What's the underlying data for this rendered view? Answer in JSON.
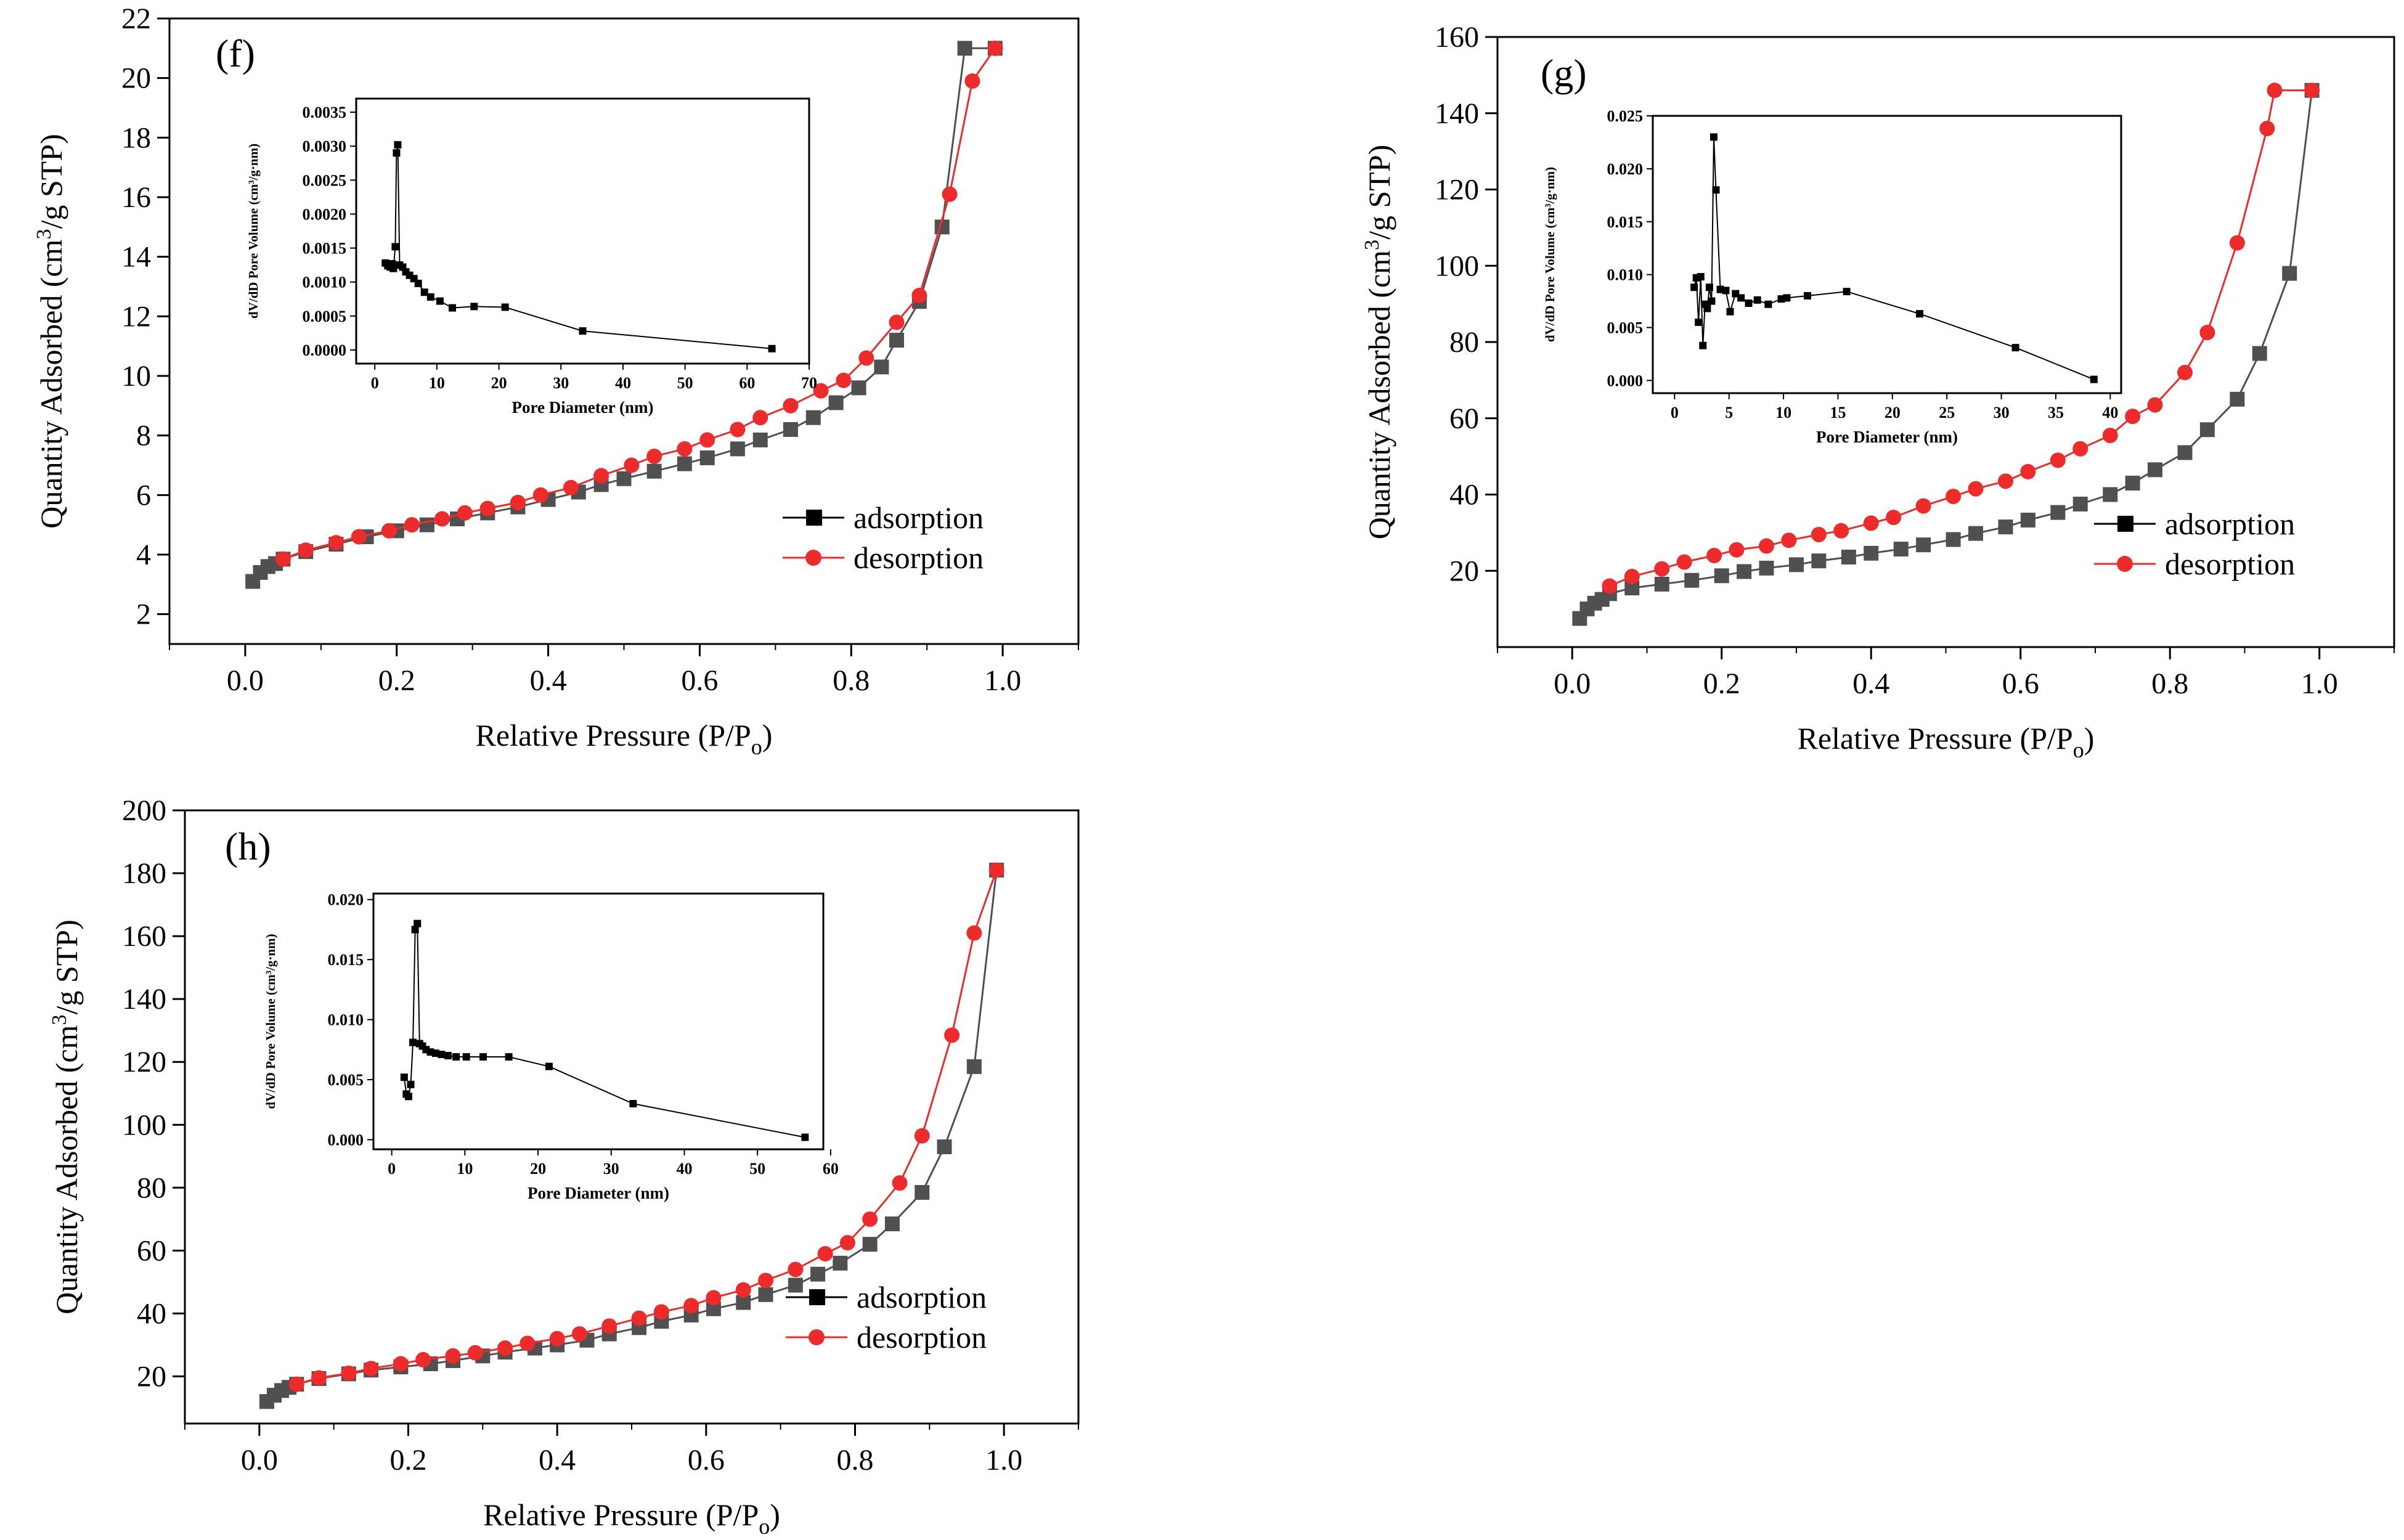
{
  "figure": {
    "background": "#ffffff"
  },
  "colors": {
    "adsorption": "#505050",
    "desorption": "#ee2b2b",
    "inset": "#000000",
    "axis": "#000000"
  },
  "chart_data": [
    {
      "type": "line",
      "panel_label": "(f)",
      "xlabel": "Relative Pressure (P/P",
      "xlabel_subscript": "o",
      "xlabel_suffix": ")",
      "ylabel": "Quantity Adsorbed (cm",
      "ylabel_superscript": "3",
      "ylabel_suffix": "/g STP)",
      "xlim": [
        -0.1,
        1.1
      ],
      "ylim": [
        1.0,
        22.0
      ],
      "xticks": [
        "0.0",
        "0.2",
        "0.4",
        "0.6",
        "0.8",
        "1.0"
      ],
      "yticks": [
        "2",
        "4",
        "6",
        "8",
        "10",
        "12",
        "14",
        "16",
        "18",
        "20",
        "22"
      ],
      "legend": [
        "adsorption",
        "desorption"
      ],
      "legend_position": "lower-right",
      "series": [
        {
          "name": "adsorption",
          "marker": "square",
          "x": [
            0.01,
            0.02,
            0.03,
            0.04,
            0.05,
            0.08,
            0.12,
            0.16,
            0.2,
            0.24,
            0.28,
            0.32,
            0.36,
            0.4,
            0.44,
            0.47,
            0.5,
            0.54,
            0.58,
            0.61,
            0.65,
            0.68,
            0.72,
            0.75,
            0.78,
            0.81,
            0.84,
            0.86,
            0.89,
            0.92,
            0.95,
            0.99
          ],
          "y": [
            3.1,
            3.4,
            3.6,
            3.7,
            3.85,
            4.1,
            4.35,
            4.6,
            4.8,
            5.0,
            5.2,
            5.4,
            5.6,
            5.85,
            6.1,
            6.35,
            6.55,
            6.8,
            7.05,
            7.25,
            7.55,
            7.85,
            8.2,
            8.6,
            9.1,
            9.6,
            10.3,
            11.2,
            12.5,
            15.0,
            21.0,
            21.0
          ]
        },
        {
          "name": "desorption",
          "marker": "circle",
          "x": [
            0.99,
            0.96,
            0.93,
            0.89,
            0.86,
            0.82,
            0.79,
            0.76,
            0.72,
            0.68,
            0.65,
            0.61,
            0.58,
            0.54,
            0.51,
            0.47,
            0.43,
            0.39,
            0.36,
            0.32,
            0.29,
            0.26,
            0.22,
            0.19,
            0.15,
            0.12,
            0.08,
            0.05
          ],
          "y": [
            21.0,
            19.9,
            16.1,
            12.7,
            11.8,
            10.6,
            9.85,
            9.5,
            9.0,
            8.6,
            8.2,
            7.85,
            7.55,
            7.3,
            7.0,
            6.65,
            6.25,
            6.0,
            5.75,
            5.55,
            5.4,
            5.2,
            5.0,
            4.8,
            4.6,
            4.4,
            4.15,
            3.85
          ]
        }
      ],
      "inset": {
        "type": "line",
        "xlabel": "Pore Diameter (nm)",
        "ylabel": "dV/dD Pore Volume (cm³/g·nm)",
        "xlim": [
          -3,
          70
        ],
        "ylim": [
          -0.0002,
          0.0037
        ],
        "xticks": [
          "0",
          "10",
          "20",
          "30",
          "40",
          "50",
          "60",
          "70"
        ],
        "yticks": [
          "0.0000",
          "0.0005",
          "0.0010",
          "0.0015",
          "0.0020",
          "0.0025",
          "0.0030",
          "0.0035"
        ],
        "x": [
          1.7,
          2.1,
          2.5,
          2.8,
          3.0,
          3.3,
          3.5,
          3.7,
          4.0,
          4.5,
          5.0,
          5.6,
          6.3,
          7.0,
          8.0,
          9.0,
          10.5,
          12.5,
          16.0,
          21.0,
          33.5,
          64.0
        ],
        "y": [
          0.00128,
          0.00124,
          0.00122,
          0.00127,
          0.0012,
          0.00152,
          0.0029,
          0.00302,
          0.00125,
          0.00122,
          0.00115,
          0.0011,
          0.00105,
          0.00098,
          0.00085,
          0.00078,
          0.00072,
          0.00062,
          0.00064,
          0.00063,
          0.00028,
          2e-05
        ]
      }
    },
    {
      "type": "line",
      "panel_label": "(g)",
      "xlabel": "Relative Pressure (P/P",
      "xlabel_subscript": "o",
      "xlabel_suffix": ")",
      "ylabel": "Quantity Adsorbed (cm",
      "ylabel_superscript": "3",
      "ylabel_suffix": "/g STP)",
      "xlim": [
        -0.1,
        1.1
      ],
      "ylim": [
        0,
        160
      ],
      "xticks": [
        "0.0",
        "0.2",
        "0.4",
        "0.6",
        "0.8",
        "1.0"
      ],
      "yticks": [
        "20",
        "40",
        "60",
        "80",
        "100",
        "120",
        "140",
        "160"
      ],
      "legend": [
        "adsorption",
        "desorption"
      ],
      "legend_position": "lower-right",
      "series": [
        {
          "name": "adsorption",
          "marker": "square",
          "x": [
            0.01,
            0.02,
            0.03,
            0.04,
            0.05,
            0.08,
            0.12,
            0.16,
            0.2,
            0.23,
            0.26,
            0.3,
            0.33,
            0.37,
            0.4,
            0.44,
            0.47,
            0.51,
            0.54,
            0.58,
            0.61,
            0.65,
            0.68,
            0.72,
            0.75,
            0.78,
            0.82,
            0.85,
            0.89,
            0.92,
            0.96,
            0.99
          ],
          "y": [
            7.5,
            10.0,
            11.5,
            12.5,
            14.0,
            15.5,
            16.5,
            17.5,
            18.7,
            19.8,
            20.7,
            21.6,
            22.6,
            23.6,
            24.6,
            25.7,
            26.8,
            28.2,
            29.8,
            31.5,
            33.3,
            35.3,
            37.5,
            40.0,
            43.0,
            46.5,
            51.0,
            57.0,
            65.0,
            77.0,
            98.0,
            146.0
          ]
        },
        {
          "name": "desorption",
          "marker": "circle",
          "x": [
            0.99,
            0.94,
            0.93,
            0.89,
            0.85,
            0.82,
            0.78,
            0.75,
            0.72,
            0.68,
            0.65,
            0.61,
            0.58,
            0.54,
            0.51,
            0.47,
            0.43,
            0.4,
            0.36,
            0.33,
            0.29,
            0.26,
            0.22,
            0.19,
            0.15,
            0.12,
            0.08,
            0.05
          ],
          "y": [
            146.0,
            146.0,
            136.0,
            106.0,
            82.5,
            72.0,
            63.5,
            60.5,
            55.5,
            52.0,
            49.0,
            46.0,
            43.5,
            41.5,
            39.5,
            37.0,
            34.0,
            32.5,
            30.5,
            29.5,
            28.0,
            26.5,
            25.5,
            24.0,
            22.3,
            20.5,
            18.5,
            16.0
          ]
        }
      ],
      "inset": {
        "type": "line",
        "xlabel": "Pore Diameter (nm)",
        "ylabel": "dV/dD Pore Volume (cm³/g·nm)",
        "xlim": [
          -2,
          41
        ],
        "ylim": [
          -0.0012,
          0.025
        ],
        "xticks": [
          "0",
          "5",
          "10",
          "15",
          "20",
          "25",
          "30",
          "35",
          "40"
        ],
        "yticks": [
          "0.000",
          "0.005",
          "0.010",
          "0.015",
          "0.020",
          "0.025"
        ],
        "x": [
          1.8,
          2.0,
          2.2,
          2.4,
          2.6,
          2.8,
          3.0,
          3.2,
          3.4,
          3.6,
          3.8,
          4.2,
          4.7,
          5.1,
          5.6,
          6.1,
          6.8,
          7.6,
          8.6,
          9.8,
          10.3,
          12.2,
          15.8,
          22.5,
          31.3,
          38.5
        ],
        "y": [
          0.0088,
          0.0097,
          0.0055,
          0.0098,
          0.0033,
          0.0072,
          0.0068,
          0.0088,
          0.0075,
          0.023,
          0.018,
          0.0086,
          0.0085,
          0.0065,
          0.0082,
          0.0078,
          0.0073,
          0.0076,
          0.0072,
          0.0077,
          0.0078,
          0.008,
          0.0084,
          0.0063,
          0.0031,
          0.0001
        ]
      }
    },
    {
      "type": "line",
      "panel_label": "(h)",
      "xlabel": "Relative Pressure (P/P",
      "xlabel_subscript": "o",
      "xlabel_suffix": ")",
      "ylabel": "Quantity Adsorbed (cm",
      "ylabel_superscript": "3",
      "ylabel_suffix": "/g STP)",
      "xlim": [
        -0.1,
        1.1
      ],
      "ylim": [
        5,
        200
      ],
      "xticks": [
        "0.0",
        "0.2",
        "0.4",
        "0.6",
        "0.8",
        "1.0"
      ],
      "yticks": [
        "20",
        "40",
        "60",
        "80",
        "100",
        "120",
        "140",
        "160",
        "180",
        "200"
      ],
      "legend": [
        "adsorption",
        "desorption"
      ],
      "legend_position": "lower-right",
      "series": [
        {
          "name": "adsorption",
          "marker": "square",
          "x": [
            0.01,
            0.02,
            0.03,
            0.04,
            0.05,
            0.08,
            0.12,
            0.15,
            0.19,
            0.23,
            0.26,
            0.3,
            0.33,
            0.37,
            0.4,
            0.44,
            0.47,
            0.51,
            0.54,
            0.58,
            0.61,
            0.65,
            0.68,
            0.72,
            0.75,
            0.78,
            0.82,
            0.85,
            0.89,
            0.92,
            0.96,
            0.99
          ],
          "y": [
            12.0,
            14.0,
            15.5,
            16.5,
            17.5,
            19.3,
            20.8,
            22.0,
            23.0,
            24.0,
            25.0,
            26.5,
            27.7,
            29.0,
            30.0,
            31.5,
            33.5,
            35.5,
            37.5,
            39.5,
            41.5,
            43.5,
            46.0,
            49.0,
            52.5,
            56.0,
            62.0,
            68.5,
            78.5,
            93.0,
            118.5,
            181.0
          ]
        },
        {
          "name": "desorption",
          "marker": "circle",
          "x": [
            0.99,
            0.96,
            0.93,
            0.89,
            0.86,
            0.82,
            0.79,
            0.76,
            0.72,
            0.68,
            0.65,
            0.61,
            0.58,
            0.54,
            0.51,
            0.47,
            0.43,
            0.4,
            0.36,
            0.33,
            0.29,
            0.26,
            0.22,
            0.19,
            0.15,
            0.12,
            0.08,
            0.05
          ],
          "y": [
            181.0,
            161.0,
            128.5,
            96.5,
            81.5,
            70.0,
            62.5,
            59.0,
            54.0,
            50.5,
            47.5,
            45.0,
            42.5,
            40.5,
            38.5,
            36.0,
            33.5,
            32.0,
            30.5,
            29.0,
            27.5,
            26.5,
            25.3,
            24.0,
            22.5,
            21.0,
            19.5,
            17.5
          ]
        }
      ],
      "inset": {
        "type": "line",
        "xlabel": "Pore Diameter (nm)",
        "ylabel": "dV/dD Pore Volume (cm³/g·nm)",
        "xlim": [
          -2.5,
          59
        ],
        "ylim": [
          -0.0008,
          0.0205
        ],
        "xticks": [
          "0",
          "10",
          "20",
          "30",
          "40",
          "50",
          "60"
        ],
        "yticks": [
          "0.000",
          "0.005",
          "0.010",
          "0.015",
          "0.020"
        ],
        "x": [
          1.7,
          2.0,
          2.3,
          2.6,
          2.9,
          3.2,
          3.5,
          3.8,
          4.2,
          4.7,
          5.3,
          6.0,
          6.8,
          7.7,
          8.8,
          10.2,
          12.5,
          16.0,
          21.5,
          33.0,
          56.5
        ],
        "y": [
          0.0052,
          0.0038,
          0.0036,
          0.0046,
          0.0081,
          0.0175,
          0.018,
          0.008,
          0.0078,
          0.0075,
          0.0073,
          0.0072,
          0.0071,
          0.007,
          0.0069,
          0.0069,
          0.0069,
          0.0069,
          0.0061,
          0.003,
          0.0002
        ]
      }
    }
  ]
}
